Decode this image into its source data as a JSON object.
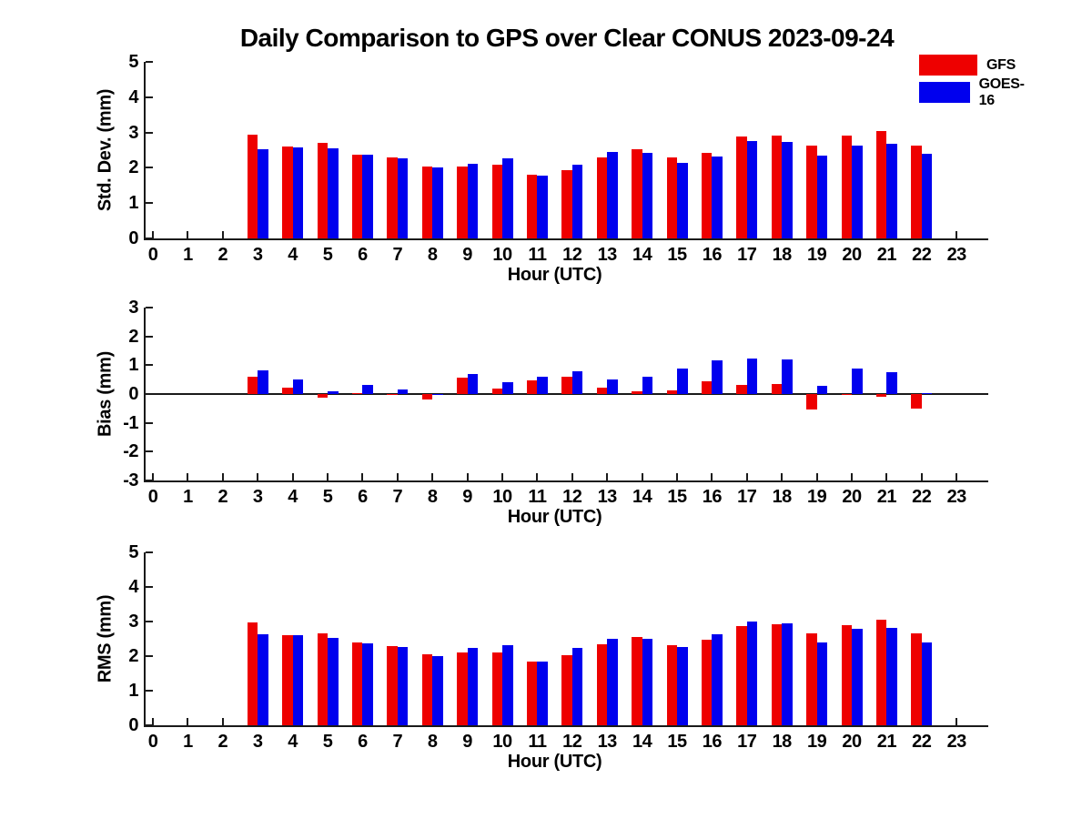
{
  "title": "Daily Comparison to GPS over Clear CONUS 2023-09-24",
  "colors": {
    "gfs_red": "#ee0000",
    "goes_blue": "#0000ee",
    "axis": "#1a1a1a",
    "background": "#ffffff"
  },
  "legend": {
    "position": "top-right-outside",
    "items": [
      {
        "label": "GFS",
        "color": "#ee0000"
      },
      {
        "label": "GOES-16",
        "color": "#0000ee"
      }
    ]
  },
  "chart_data": [
    {
      "type": "bar",
      "name": "std-dev",
      "ylabel": "Std. Dev. (mm)",
      "xlabel": "Hour (UTC)",
      "ylim": [
        0,
        5
      ],
      "yticks": [
        0,
        1,
        2,
        3,
        4,
        5
      ],
      "xticks": [
        0,
        1,
        2,
        3,
        4,
        5,
        6,
        7,
        8,
        9,
        10,
        11,
        12,
        13,
        14,
        15,
        16,
        17,
        18,
        19,
        20,
        21,
        22,
        23
      ],
      "grid": false,
      "categories_hours": [
        3,
        4,
        5,
        6,
        7,
        8,
        9,
        10,
        11,
        12,
        13,
        14,
        15,
        16,
        17,
        18,
        19,
        20,
        21,
        22
      ],
      "series": [
        {
          "name": "GFS",
          "color": "#ee0000",
          "values": [
            2.95,
            2.6,
            2.7,
            2.38,
            2.3,
            2.03,
            2.04,
            2.1,
            1.8,
            1.93,
            2.3,
            2.53,
            2.3,
            2.42,
            2.88,
            2.92,
            2.64,
            2.9,
            3.05,
            2.62
          ]
        },
        {
          "name": "GOES-16",
          "color": "#0000ee",
          "values": [
            2.52,
            2.58,
            2.54,
            2.36,
            2.27,
            2.0,
            2.12,
            2.28,
            1.77,
            2.09,
            2.46,
            2.43,
            2.13,
            2.33,
            2.77,
            2.72,
            2.35,
            2.63,
            2.68,
            2.4
          ]
        }
      ]
    },
    {
      "type": "bar",
      "name": "bias",
      "ylabel": "Bias (mm)",
      "xlabel": "Hour (UTC)",
      "ylim": [
        -3,
        3
      ],
      "yticks": [
        -3,
        -2,
        -1,
        0,
        1,
        2,
        3
      ],
      "xticks": [
        0,
        1,
        2,
        3,
        4,
        5,
        6,
        7,
        8,
        9,
        10,
        11,
        12,
        13,
        14,
        15,
        16,
        17,
        18,
        19,
        20,
        21,
        22,
        23
      ],
      "grid": false,
      "zero_line": true,
      "categories_hours": [
        3,
        4,
        5,
        6,
        7,
        8,
        9,
        10,
        11,
        12,
        13,
        14,
        15,
        16,
        17,
        18,
        19,
        20,
        21,
        22
      ],
      "series": [
        {
          "name": "GFS",
          "color": "#ee0000",
          "values": [
            0.6,
            0.22,
            -0.13,
            0.02,
            0.01,
            -0.18,
            0.57,
            0.18,
            0.48,
            0.6,
            0.22,
            0.1,
            0.12,
            0.45,
            0.32,
            0.35,
            -0.55,
            0.01,
            -0.08,
            -0.52
          ]
        },
        {
          "name": "GOES-16",
          "color": "#0000ee",
          "values": [
            0.82,
            0.5,
            0.08,
            0.31,
            0.16,
            -0.04,
            0.71,
            0.42,
            0.6,
            0.78,
            0.49,
            0.6,
            0.88,
            1.18,
            1.22,
            1.2,
            0.3,
            0.9,
            0.77,
            0.02
          ]
        }
      ]
    },
    {
      "type": "bar",
      "name": "rms",
      "ylabel": "RMS (mm)",
      "xlabel": "Hour (UTC)",
      "ylim": [
        0,
        5
      ],
      "yticks": [
        0,
        1,
        2,
        3,
        4,
        5
      ],
      "xticks": [
        0,
        1,
        2,
        3,
        4,
        5,
        6,
        7,
        8,
        9,
        10,
        11,
        12,
        13,
        14,
        15,
        16,
        17,
        18,
        19,
        20,
        21,
        22,
        23
      ],
      "grid": false,
      "categories_hours": [
        3,
        4,
        5,
        6,
        7,
        8,
        9,
        10,
        11,
        12,
        13,
        14,
        15,
        16,
        17,
        18,
        19,
        20,
        21,
        22
      ],
      "series": [
        {
          "name": "GFS",
          "color": "#ee0000",
          "values": [
            2.98,
            2.61,
            2.67,
            2.39,
            2.3,
            2.04,
            2.11,
            2.1,
            1.85,
            2.03,
            2.33,
            2.55,
            2.31,
            2.48,
            2.88,
            2.93,
            2.67,
            2.89,
            3.04,
            2.65
          ]
        },
        {
          "name": "GOES-16",
          "color": "#0000ee",
          "values": [
            2.62,
            2.6,
            2.53,
            2.37,
            2.27,
            2.0,
            2.23,
            2.32,
            1.84,
            2.23,
            2.51,
            2.5,
            2.27,
            2.62,
            3.0,
            2.96,
            2.39,
            2.79,
            2.81,
            2.39
          ]
        }
      ]
    }
  ]
}
